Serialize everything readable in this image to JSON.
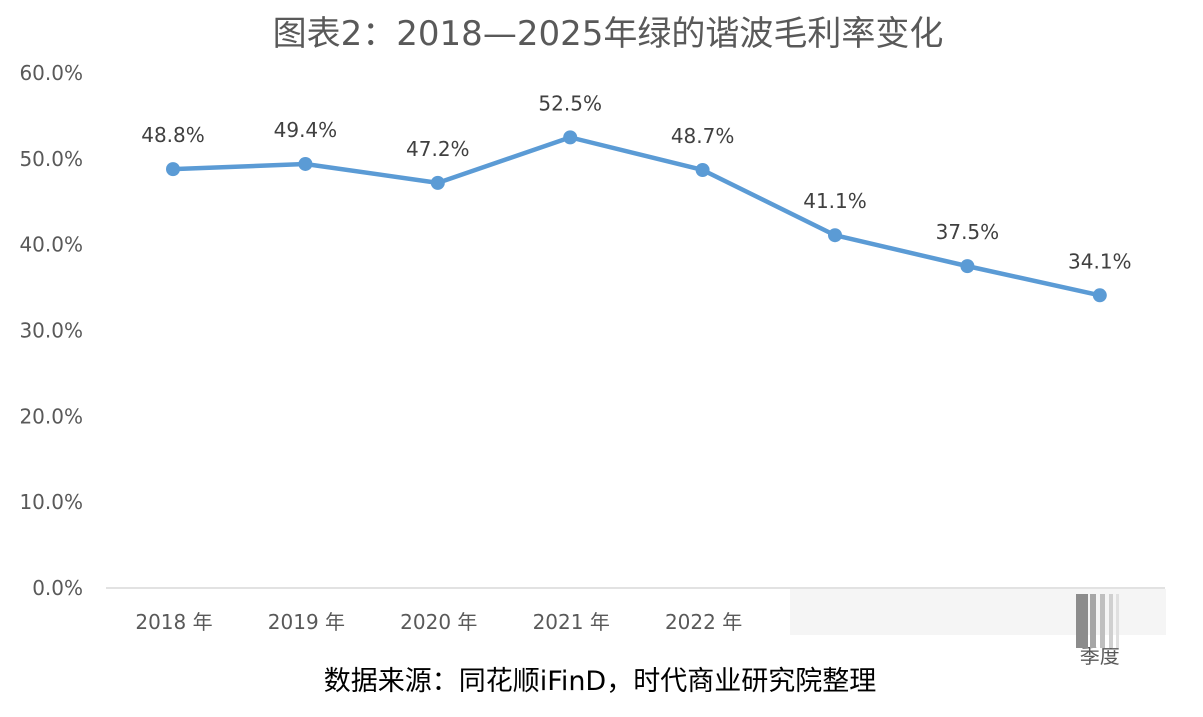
{
  "chart_data": {
    "type": "line",
    "title": "图表2：2018—2025年绿的谐波毛利率变化",
    "categories": [
      "2018 年",
      "2019 年",
      "2020 年",
      "2021 年",
      "2022 年",
      "",
      "",
      "季度"
    ],
    "series": [
      {
        "values": [
          48.8,
          49.4,
          47.2,
          52.5,
          48.7,
          41.1,
          37.5,
          34.1
        ],
        "labels": [
          "48.8%",
          "49.4%",
          "47.2%",
          "52.5%",
          "48.7%",
          "41.1%",
          "37.5%",
          "34.1%"
        ],
        "color": "#5B9BD5"
      }
    ],
    "yticks": [
      "0.0%",
      "10.0%",
      "20.0%",
      "30.0%",
      "40.0%",
      "50.0%",
      "60.0%"
    ],
    "ylim": [
      0,
      60
    ],
    "grid": false,
    "legend": "none"
  },
  "source_note": "数据来源：同花顺iFinD，时代商业研究院整理",
  "colors": {
    "line": "#5B9BD5",
    "axis": "#D9D9D9",
    "title": "#595959",
    "tick": "#595959",
    "label": "#404040"
  }
}
